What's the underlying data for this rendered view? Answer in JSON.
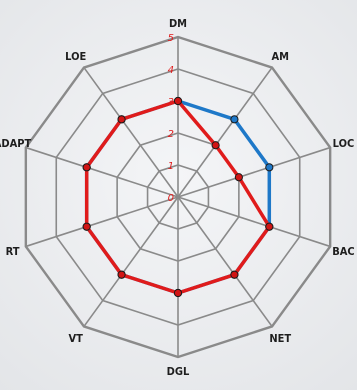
{
  "chart_data": {
    "type": "radar",
    "axes": [
      "DM",
      "AM",
      "LOC",
      "BAC",
      "NET",
      "DGL",
      "VT",
      "RT",
      "ADAPT",
      "LOE"
    ],
    "range": [
      0,
      5
    ],
    "ticks": [
      "0",
      "1",
      "2",
      "3",
      "4",
      "5"
    ],
    "grid": true,
    "series": [
      {
        "values": [
          3,
          3,
          3,
          3,
          3,
          3,
          3,
          3,
          3,
          3
        ]
      },
      {
        "values": [
          3,
          2,
          2,
          3,
          3,
          3,
          3,
          3,
          3,
          3
        ]
      }
    ]
  },
  "colors": {
    "grid": "#8a8a8a",
    "series": [
      "#1e78c8",
      "#e01b1b"
    ],
    "marker_fill": "#d11414",
    "tick": "#e01b1b",
    "label": "#1e1e1e"
  }
}
